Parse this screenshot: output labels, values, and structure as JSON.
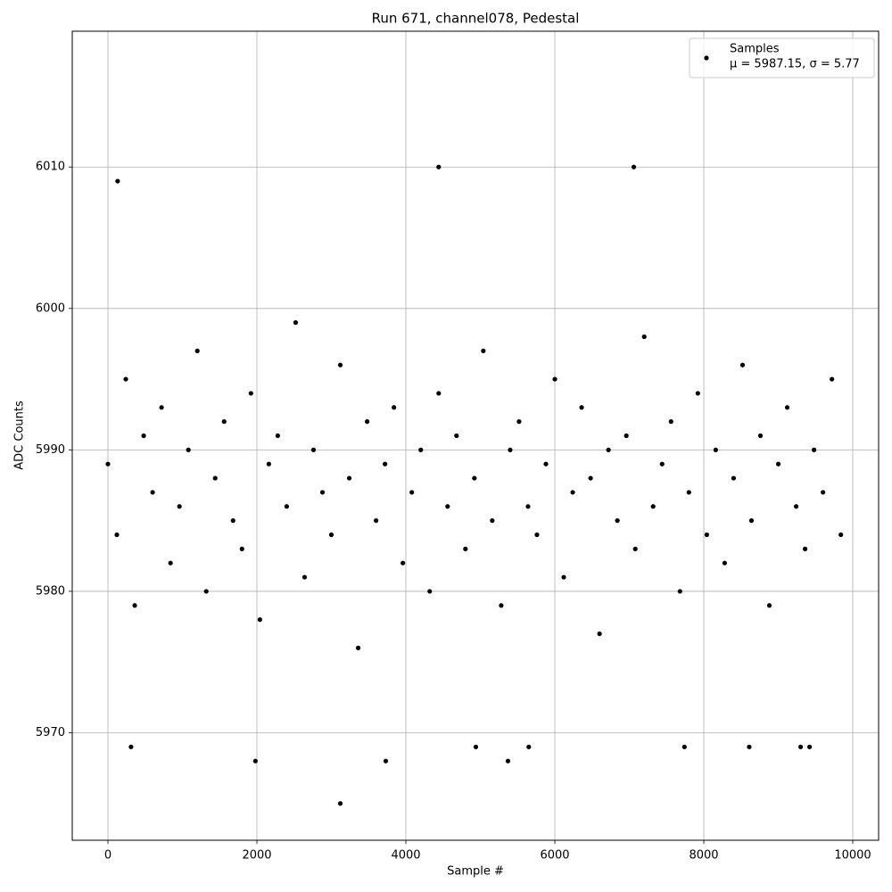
{
  "chart_data": {
    "type": "scatter",
    "title": "Run 671, channel078, Pedestal",
    "x_label": "Sample #",
    "y_label": "ADC Counts",
    "xlim": [
      -479,
      10347
    ],
    "ylim": [
      5962.4,
      6019.6
    ],
    "xticks": [
      0,
      2000,
      4000,
      6000,
      8000,
      10000
    ],
    "yticks": [
      5970,
      5980,
      5990,
      6000,
      6010
    ],
    "grid": true,
    "legend": "upper right",
    "legend_note": "μ = 5987.15, σ = 5.77",
    "series": [
      {
        "name": "Samples",
        "color": "#000000",
        "x": [
          0,
          120,
          240,
          360,
          480,
          600,
          720,
          840,
          960,
          1080,
          1200,
          1320,
          1440,
          1560,
          1680,
          1800,
          1920,
          2040,
          2160,
          2280,
          2400,
          2520,
          2640,
          2760,
          2880,
          3000,
          3120,
          3240,
          3360,
          3480,
          3600,
          3720,
          3840,
          3960,
          4080,
          4200,
          4320,
          4440,
          4560,
          4680,
          4800,
          4920,
          5040,
          5160,
          5280,
          5400,
          5520,
          5640,
          5760,
          5880,
          6000,
          6120,
          6240,
          6360,
          6480,
          6600,
          6720,
          6840,
          6960,
          7080,
          7200,
          7320,
          7440,
          7560,
          7680,
          7800,
          7920,
          8040,
          8160,
          8280,
          8400,
          8520,
          8640,
          8760,
          8880,
          9000,
          9120,
          9240,
          9360,
          9480,
          9600,
          9720,
          9840,
          130,
          4440,
          7060,
          3120,
          1980,
          3730,
          5370,
          310,
          4940,
          5650,
          7740,
          8610,
          9300,
          9420
        ],
        "values": [
          5989,
          5984,
          5995,
          5979,
          5991,
          5987,
          5993,
          5982,
          5986,
          5990,
          5997,
          5980,
          5988,
          5992,
          5985,
          5983,
          5994,
          5978,
          5989,
          5991,
          5986,
          5999,
          5981,
          5990,
          5987,
          5984,
          5996,
          5988,
          5976,
          5992,
          5985,
          5989,
          5993,
          5982,
          5987,
          5990,
          5980,
          5994,
          5986,
          5991,
          5983,
          5988,
          5997,
          5985,
          5979,
          5990,
          5992,
          5986,
          5984,
          5989,
          5995,
          5981,
          5987,
          5993,
          5988,
          5977,
          5990,
          5985,
          5991,
          5983,
          5998,
          5986,
          5989,
          5992,
          5980,
          5987,
          5994,
          5984,
          5990,
          5982,
          5988,
          5996,
          5985,
          5991,
          5979,
          5989,
          5993,
          5986,
          5983,
          5990,
          5987,
          5995,
          5984,
          6009,
          6010,
          6010,
          5965,
          5968,
          5968,
          5968,
          5969,
          5969,
          5969,
          5969,
          5969,
          5969,
          5969
        ]
      }
    ]
  }
}
